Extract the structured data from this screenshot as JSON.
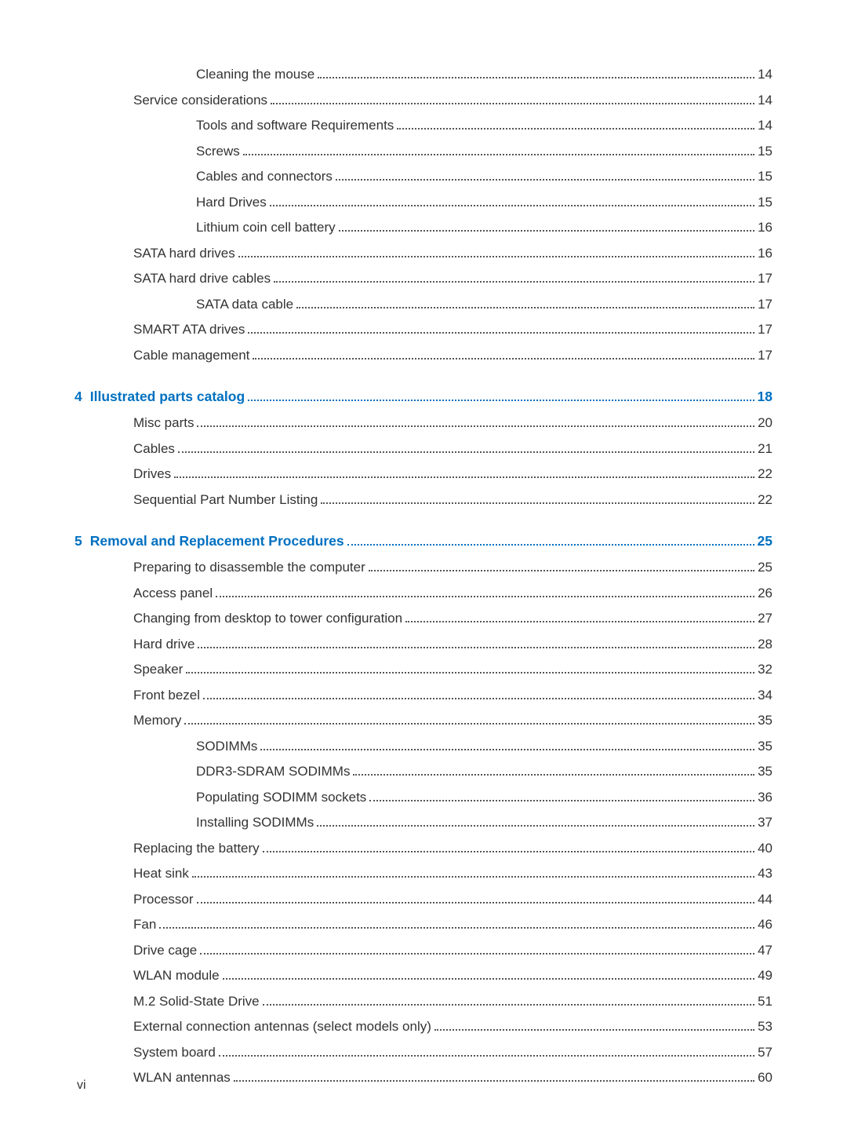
{
  "section3_tail": [
    {
      "indent": 2,
      "label": "Cleaning the mouse",
      "page": "14"
    },
    {
      "indent": 1,
      "label": "Service considerations",
      "page": "14"
    },
    {
      "indent": 2,
      "label": "Tools and software Requirements",
      "page": "14"
    },
    {
      "indent": 2,
      "label": "Screws",
      "page": "15"
    },
    {
      "indent": 2,
      "label": "Cables and connectors",
      "page": "15"
    },
    {
      "indent": 2,
      "label": "Hard Drives",
      "page": "15"
    },
    {
      "indent": 2,
      "label": "Lithium coin cell battery",
      "page": "16"
    },
    {
      "indent": 1,
      "label": "SATA hard drives",
      "page": "16"
    },
    {
      "indent": 1,
      "label": "SATA hard drive cables",
      "page": "17"
    },
    {
      "indent": 2,
      "label": "SATA data cable",
      "page": "17"
    },
    {
      "indent": 1,
      "label": "SMART ATA drives",
      "page": "17"
    },
    {
      "indent": 1,
      "label": "Cable management",
      "page": "17"
    }
  ],
  "chapter4": {
    "num": "4",
    "title": "Illustrated parts catalog",
    "page": "18"
  },
  "chapter4_items": [
    {
      "indent": 1,
      "label": "Misc parts",
      "page": "20"
    },
    {
      "indent": 1,
      "label": "Cables",
      "page": "21"
    },
    {
      "indent": 1,
      "label": "Drives",
      "page": "22"
    },
    {
      "indent": 1,
      "label": "Sequential Part Number Listing",
      "page": "22"
    }
  ],
  "chapter5": {
    "num": "5",
    "title": "Removal and Replacement Procedures",
    "page": "25"
  },
  "chapter5_items": [
    {
      "indent": 1,
      "label": "Preparing to disassemble the computer",
      "page": "25"
    },
    {
      "indent": 1,
      "label": "Access panel",
      "page": "26"
    },
    {
      "indent": 1,
      "label": "Changing from desktop to tower configuration",
      "page": "27"
    },
    {
      "indent": 1,
      "label": "Hard drive",
      "page": "28"
    },
    {
      "indent": 1,
      "label": "Speaker",
      "page": "32"
    },
    {
      "indent": 1,
      "label": "Front bezel",
      "page": "34"
    },
    {
      "indent": 1,
      "label": "Memory",
      "page": "35"
    },
    {
      "indent": 2,
      "label": "SODIMMs",
      "page": "35"
    },
    {
      "indent": 2,
      "label": "DDR3-SDRAM SODIMMs",
      "page": "35"
    },
    {
      "indent": 2,
      "label": "Populating SODIMM sockets",
      "page": "36"
    },
    {
      "indent": 2,
      "label": "Installing SODIMMs",
      "page": "37"
    },
    {
      "indent": 1,
      "label": "Replacing the battery",
      "page": "40"
    },
    {
      "indent": 1,
      "label": "Heat sink",
      "page": "43"
    },
    {
      "indent": 1,
      "label": "Processor",
      "page": "44"
    },
    {
      "indent": 1,
      "label": "Fan",
      "page": "46"
    },
    {
      "indent": 1,
      "label": "Drive cage",
      "page": "47"
    },
    {
      "indent": 1,
      "label": "WLAN module",
      "page": "49"
    },
    {
      "indent": 1,
      "label": "M.2 Solid-State Drive",
      "page": "51"
    },
    {
      "indent": 1,
      "label": "External connection antennas (select models only)",
      "page": "53"
    },
    {
      "indent": 1,
      "label": "System board",
      "page": "57"
    },
    {
      "indent": 1,
      "label": "WLAN antennas",
      "page": "60"
    }
  ],
  "footer_page": "vi"
}
